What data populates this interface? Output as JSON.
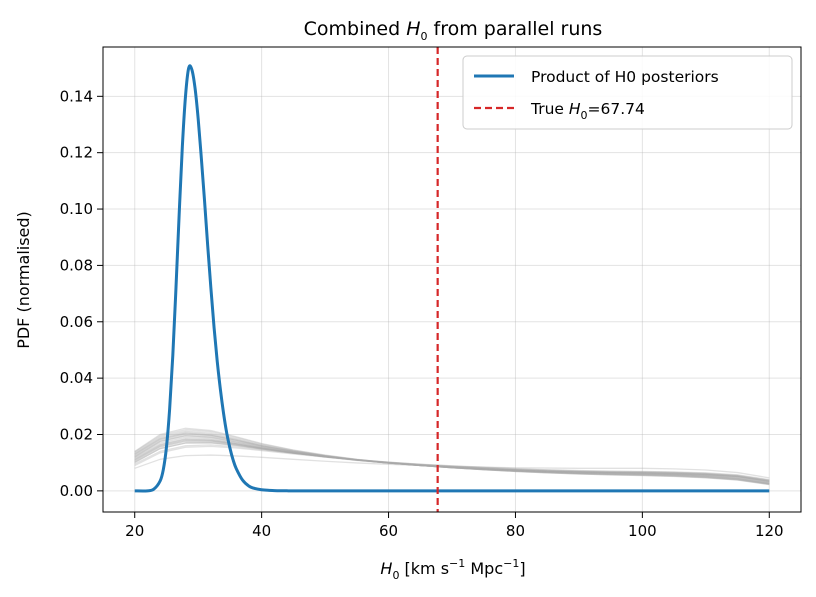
{
  "chart_data": {
    "type": "line",
    "title_prefix": "Combined ",
    "title_var": "H",
    "title_sub": "0",
    "title_suffix": " from parallel runs",
    "xlabel_var": "H",
    "xlabel_sub": "0",
    "xlabel_unit_a": " [km s",
    "xlabel_exp_a": "−1",
    "xlabel_unit_b": " Mpc",
    "xlabel_exp_b": "−1",
    "xlabel_close": "]",
    "ylabel": "PDF (normalised)",
    "xlim": [
      15,
      125
    ],
    "ylim": [
      -0.0075,
      0.1575
    ],
    "xticks": [
      20,
      40,
      60,
      80,
      100,
      120
    ],
    "xtick_labels": [
      "20",
      "40",
      "60",
      "80",
      "100",
      "120"
    ],
    "yticks": [
      0.0,
      0.02,
      0.04,
      0.06,
      0.08,
      0.1,
      0.12,
      0.14
    ],
    "ytick_labels": [
      "0.00",
      "0.02",
      "0.04",
      "0.06",
      "0.08",
      "0.10",
      "0.12",
      "0.14"
    ],
    "grid": true,
    "legend_position": "top-right",
    "legend": {
      "product_label": "Product of H0 posteriors",
      "true_prefix": "True ",
      "true_var": "H",
      "true_sub": "0",
      "true_suffix": "=67.74"
    },
    "product_posterior": {
      "name": "Product of H0 posteriors",
      "color": "#1f77b4",
      "x": [
        20,
        22,
        23,
        24,
        24.5,
        25,
        25.5,
        26,
        26.5,
        27,
        27.5,
        28,
        28.5,
        29,
        29.5,
        30,
        30.5,
        31,
        31.5,
        32,
        32.5,
        33,
        33.5,
        34,
        34.5,
        35,
        35.5,
        36,
        37,
        38,
        39,
        40,
        41,
        42,
        43,
        44,
        45,
        50,
        60,
        80,
        100,
        120
      ],
      "y": [
        0.0,
        0.0,
        0.0006,
        0.0035,
        0.0075,
        0.0155,
        0.029,
        0.048,
        0.072,
        0.098,
        0.122,
        0.14,
        0.15,
        0.1495,
        0.143,
        0.132,
        0.118,
        0.103,
        0.087,
        0.072,
        0.058,
        0.046,
        0.036,
        0.0275,
        0.0205,
        0.0152,
        0.011,
        0.0079,
        0.0038,
        0.0017,
        0.0008,
        0.0004,
        0.0002,
        0.0001,
        5e-05,
        2e-05,
        0.0,
        0.0,
        0.0,
        0.0,
        0.0,
        0.0
      ]
    },
    "true_value": {
      "x": 67.74,
      "color": "#d62728"
    },
    "individual_runs": {
      "color": "#aaaaaa",
      "count": 20,
      "x": [
        20,
        24,
        28,
        32,
        36,
        40,
        45,
        50,
        55,
        60,
        65,
        70,
        75,
        80,
        85,
        90,
        95,
        100,
        105,
        110,
        115,
        120
      ],
      "series": [
        [
          0.0115,
          0.0165,
          0.0185,
          0.0182,
          0.0168,
          0.0152,
          0.0135,
          0.012,
          0.0108,
          0.0098,
          0.009,
          0.0083,
          0.0078,
          0.0073,
          0.0069,
          0.0066,
          0.0064,
          0.0062,
          0.006,
          0.0057,
          0.005,
          0.0032
        ],
        [
          0.013,
          0.0185,
          0.0205,
          0.0198,
          0.018,
          0.016,
          0.014,
          0.0124,
          0.011,
          0.0099,
          0.009,
          0.0082,
          0.0076,
          0.007,
          0.0066,
          0.0062,
          0.006,
          0.0058,
          0.0055,
          0.005,
          0.0042,
          0.0025
        ],
        [
          0.01,
          0.015,
          0.017,
          0.017,
          0.016,
          0.0148,
          0.0134,
          0.0121,
          0.011,
          0.0101,
          0.0093,
          0.0086,
          0.008,
          0.0075,
          0.0071,
          0.0068,
          0.0066,
          0.0065,
          0.0063,
          0.006,
          0.0053,
          0.0036
        ],
        [
          0.014,
          0.02,
          0.0222,
          0.0214,
          0.0192,
          0.0168,
          0.0145,
          0.0127,
          0.0112,
          0.01,
          0.009,
          0.0082,
          0.0075,
          0.0069,
          0.0064,
          0.006,
          0.0057,
          0.0054,
          0.0051,
          0.0046,
          0.0038,
          0.0022
        ],
        [
          0.008,
          0.0112,
          0.0125,
          0.0127,
          0.0124,
          0.0119,
          0.0112,
          0.0105,
          0.0099,
          0.0094,
          0.009,
          0.0087,
          0.0084,
          0.0082,
          0.0081,
          0.008,
          0.008,
          0.008,
          0.0078,
          0.0074,
          0.0065,
          0.0046
        ],
        [
          0.012,
          0.0175,
          0.0195,
          0.019,
          0.0173,
          0.0155,
          0.0137,
          0.0122,
          0.0109,
          0.0099,
          0.0091,
          0.0084,
          0.0078,
          0.0073,
          0.0068,
          0.0065,
          0.0063,
          0.0061,
          0.0058,
          0.0054,
          0.0046,
          0.0029
        ],
        [
          0.011,
          0.016,
          0.018,
          0.0178,
          0.0166,
          0.0151,
          0.0135,
          0.0121,
          0.0109,
          0.0099,
          0.0091,
          0.0084,
          0.0079,
          0.0074,
          0.007,
          0.0067,
          0.0065,
          0.0064,
          0.0062,
          0.0058,
          0.0051,
          0.0034
        ],
        [
          0.0125,
          0.018,
          0.02,
          0.0195,
          0.0177,
          0.0158,
          0.0139,
          0.0123,
          0.011,
          0.0099,
          0.009,
          0.0083,
          0.0077,
          0.0071,
          0.0067,
          0.0063,
          0.0061,
          0.0059,
          0.0057,
          0.0052,
          0.0044,
          0.0027
        ],
        [
          0.009,
          0.0135,
          0.0155,
          0.0158,
          0.0152,
          0.0143,
          0.0131,
          0.012,
          0.011,
          0.0102,
          0.0095,
          0.0089,
          0.0084,
          0.0079,
          0.0075,
          0.0072,
          0.007,
          0.0069,
          0.0067,
          0.0064,
          0.0057,
          0.004
        ],
        [
          0.0135,
          0.0192,
          0.0212,
          0.0205,
          0.0185,
          0.0163,
          0.0142,
          0.0125,
          0.0111,
          0.01,
          0.009,
          0.0082,
          0.0075,
          0.007,
          0.0065,
          0.0061,
          0.0058,
          0.0056,
          0.0053,
          0.0048,
          0.004,
          0.0024
        ],
        [
          0.0105,
          0.0155,
          0.0175,
          0.0174,
          0.0163,
          0.0149,
          0.0134,
          0.0121,
          0.011,
          0.01,
          0.0092,
          0.0085,
          0.008,
          0.0075,
          0.0071,
          0.0068,
          0.0066,
          0.0065,
          0.0063,
          0.0059,
          0.0052,
          0.0035
        ],
        [
          0.0118,
          0.017,
          0.019,
          0.0186,
          0.017,
          0.0153,
          0.0136,
          0.0121,
          0.0109,
          0.0099,
          0.0091,
          0.0084,
          0.0078,
          0.0073,
          0.0069,
          0.0066,
          0.0064,
          0.0062,
          0.0059,
          0.0055,
          0.0048,
          0.0031
        ],
        [
          0.0095,
          0.014,
          0.016,
          0.0163,
          0.0156,
          0.0146,
          0.0133,
          0.0121,
          0.011,
          0.0101,
          0.0094,
          0.0088,
          0.0083,
          0.0078,
          0.0074,
          0.0071,
          0.0069,
          0.0068,
          0.0066,
          0.0062,
          0.0055,
          0.0038
        ],
        [
          0.0128,
          0.0183,
          0.0203,
          0.0197,
          0.0179,
          0.0159,
          0.014,
          0.0124,
          0.011,
          0.0099,
          0.009,
          0.0082,
          0.0076,
          0.007,
          0.0066,
          0.0062,
          0.006,
          0.0058,
          0.0056,
          0.0051,
          0.0043,
          0.0026
        ],
        [
          0.0112,
          0.0163,
          0.0183,
          0.018,
          0.0167,
          0.0152,
          0.0135,
          0.0121,
          0.0109,
          0.0099,
          0.0091,
          0.0084,
          0.0078,
          0.0074,
          0.007,
          0.0067,
          0.0065,
          0.0063,
          0.0061,
          0.0057,
          0.005,
          0.0033
        ],
        [
          0.0138,
          0.0196,
          0.0217,
          0.021,
          0.0189,
          0.0166,
          0.0144,
          0.0126,
          0.0111,
          0.01,
          0.009,
          0.0082,
          0.0075,
          0.0069,
          0.0064,
          0.006,
          0.0057,
          0.0055,
          0.0052,
          0.0047,
          0.0039,
          0.0023
        ],
        [
          0.0102,
          0.015,
          0.017,
          0.0171,
          0.0162,
          0.0149,
          0.0134,
          0.0122,
          0.0111,
          0.0102,
          0.0094,
          0.0087,
          0.0081,
          0.0076,
          0.0072,
          0.0069,
          0.0067,
          0.0066,
          0.0065,
          0.0061,
          0.0054,
          0.0037
        ],
        [
          0.0122,
          0.0176,
          0.0196,
          0.0191,
          0.0174,
          0.0156,
          0.0138,
          0.0123,
          0.011,
          0.0099,
          0.009,
          0.0083,
          0.0077,
          0.0072,
          0.0068,
          0.0064,
          0.0062,
          0.006,
          0.0058,
          0.0053,
          0.0045,
          0.0028
        ],
        [
          0.0108,
          0.0158,
          0.0178,
          0.0177,
          0.0165,
          0.015,
          0.0135,
          0.0121,
          0.0109,
          0.01,
          0.0092,
          0.0085,
          0.0079,
          0.0074,
          0.007,
          0.0067,
          0.0065,
          0.0064,
          0.0062,
          0.0058,
          0.0051,
          0.0034
        ],
        [
          0.0132,
          0.0188,
          0.0208,
          0.0201,
          0.0182,
          0.0161,
          0.0141,
          0.0124,
          0.011,
          0.0099,
          0.009,
          0.0082,
          0.0076,
          0.007,
          0.0066,
          0.0062,
          0.0059,
          0.0057,
          0.0054,
          0.0049,
          0.0041,
          0.0025
        ]
      ]
    }
  }
}
